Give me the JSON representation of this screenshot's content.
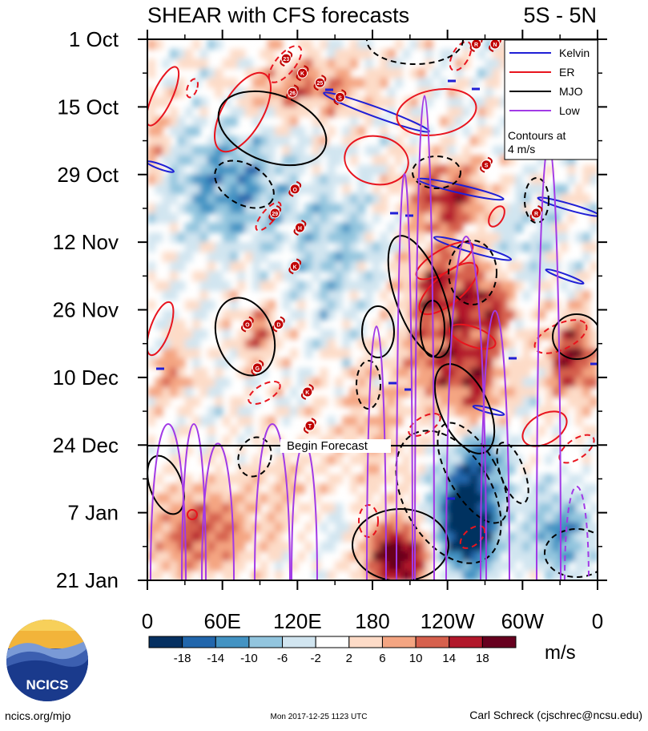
{
  "chart_data": {
    "type": "heatmap",
    "title": "SHEAR with CFS forecasts",
    "region": "5S - 5N",
    "y_tick_labels": [
      "1 Oct",
      "15 Oct",
      "29 Oct",
      "12 Nov",
      "26 Nov",
      "10 Dec",
      "24 Dec",
      "7 Jan",
      "21 Jan"
    ],
    "x_tick_labels": [
      "0",
      "60E",
      "120E",
      "180",
      "120W",
      "60W",
      "0"
    ],
    "xlim": [
      0,
      360
    ],
    "ylim_days_since_1_oct": [
      0,
      112
    ],
    "forecast_start": "24 Dec",
    "forecast_label": "Begin Forecast",
    "colorbar": {
      "labels": [
        "-18",
        "-14",
        "-10",
        "-6",
        "-2",
        "2",
        "6",
        "10",
        "14",
        "18"
      ],
      "colors": [
        "#053061",
        "#2166ac",
        "#4393c3",
        "#92c5de",
        "#d1e5f0",
        "#ffffff",
        "#fddbc7",
        "#f4a582",
        "#d6604d",
        "#b2182b",
        "#67001f"
      ],
      "unit": "m/s"
    },
    "legend": {
      "entries": [
        {
          "name": "Kelvin",
          "color": "#1f1fd6"
        },
        {
          "name": "ER",
          "color": "#e8141e"
        },
        {
          "name": "MJO",
          "color": "#000000"
        },
        {
          "name": "Low",
          "color": "#a23ae6"
        }
      ],
      "note": [
        "Contours at",
        "4 m/s"
      ],
      "placement": "top-right"
    },
    "storms": [
      {
        "label": "R",
        "lon": 263,
        "day": 1
      },
      {
        "label": "N",
        "lon": 278,
        "day": 1
      },
      {
        "label": "23",
        "lon": 111,
        "day": 4
      },
      {
        "label": "K",
        "lon": 124,
        "day": 7
      },
      {
        "label": "25",
        "lon": 138,
        "day": 9
      },
      {
        "label": "26",
        "lon": 116,
        "day": 11
      },
      {
        "label": "S",
        "lon": 154,
        "day": 12
      },
      {
        "label": "S",
        "lon": 271,
        "day": 26
      },
      {
        "label": "O",
        "lon": 118,
        "day": 31
      },
      {
        "label": "29",
        "lon": 102,
        "day": 36
      },
      {
        "label": "R",
        "lon": 311,
        "day": 36
      },
      {
        "label": "H",
        "lon": 122,
        "day": 39
      },
      {
        "label": "K",
        "lon": 118,
        "day": 47
      },
      {
        "label": "O",
        "lon": 80,
        "day": 59
      },
      {
        "label": "D",
        "lon": 105,
        "day": 59
      },
      {
        "label": "G",
        "lon": 88,
        "day": 68
      },
      {
        "label": "K",
        "lon": 128,
        "day": 73
      },
      {
        "label": "T",
        "lon": 130,
        "day": 80
      }
    ]
  },
  "logo": {
    "text": "NCICS"
  },
  "footer": {
    "url": "ncics.org/mjo",
    "timestamp": "Mon 2017-12-25 1123 UTC",
    "author": "Carl Schreck (cjschrec@ncsu.edu)"
  }
}
